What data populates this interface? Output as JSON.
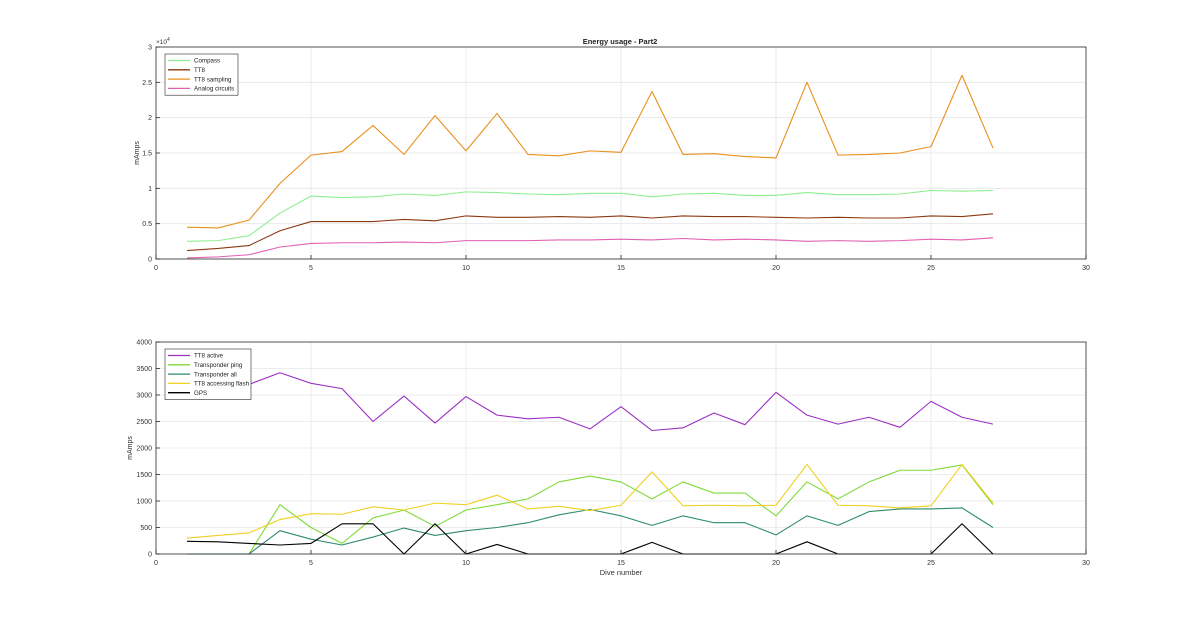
{
  "chart_data": [
    {
      "type": "line",
      "title": "Energy usage - Part2",
      "xlabel": "",
      "ylabel": "mAmps",
      "xlim": [
        0,
        30
      ],
      "ylim": [
        0,
        30000
      ],
      "xticks": [
        0,
        5,
        10,
        15,
        20,
        25,
        30
      ],
      "yticks": [
        0,
        5000,
        10000,
        15000,
        20000,
        25000,
        30000
      ],
      "ytick_labels": [
        "0",
        "0.5",
        "1",
        "1.5",
        "2",
        "2.5",
        "3"
      ],
      "exponent_label": "×10",
      "exponent_power": "4",
      "grid": true,
      "legend_location": "top-left",
      "x": [
        1,
        2,
        3,
        4,
        5,
        6,
        7,
        8,
        9,
        10,
        11,
        12,
        13,
        14,
        15,
        16,
        17,
        18,
        19,
        20,
        21,
        22,
        23,
        24,
        25,
        26,
        27
      ],
      "series": [
        {
          "name": "Compass",
          "color": "#90EE90",
          "values": [
            2500,
            2600,
            3300,
            6500,
            8900,
            8700,
            8800,
            9200,
            9000,
            9500,
            9400,
            9200,
            9100,
            9300,
            9300,
            8800,
            9200,
            9300,
            9000,
            9000,
            9400,
            9100,
            9100,
            9200,
            9700,
            9600,
            9700
          ]
        },
        {
          "name": "TT8",
          "color": "#8B3A0F",
          "values": [
            1200,
            1500,
            1900,
            4000,
            5300,
            5300,
            5300,
            5600,
            5400,
            6100,
            5900,
            5900,
            6000,
            5900,
            6100,
            5800,
            6100,
            6000,
            6000,
            5900,
            5800,
            5900,
            5800,
            5800,
            6100,
            6000,
            6400
          ]
        },
        {
          "name": "TT8 sampling",
          "color": "#E8901C",
          "values": [
            4500,
            4400,
            5500,
            10700,
            14700,
            15200,
            18900,
            14800,
            20300,
            15300,
            20600,
            14800,
            14600,
            15300,
            15100,
            23700,
            14800,
            14900,
            14500,
            14300,
            25000,
            14700,
            14800,
            15000,
            15900,
            26000,
            15700
          ]
        },
        {
          "name": "Analog circuits",
          "color": "#E060B0",
          "values": [
            150,
            300,
            600,
            1700,
            2200,
            2300,
            2300,
            2400,
            2300,
            2600,
            2600,
            2600,
            2700,
            2700,
            2800,
            2700,
            2900,
            2700,
            2800,
            2700,
            2500,
            2600,
            2500,
            2600,
            2800,
            2700,
            3000
          ]
        }
      ]
    },
    {
      "type": "line",
      "title": "",
      "xlabel": "Dive number",
      "ylabel": "mAmps",
      "xlim": [
        0,
        30
      ],
      "ylim": [
        0,
        4000
      ],
      "xticks": [
        0,
        5,
        10,
        15,
        20,
        25,
        30
      ],
      "yticks": [
        0,
        500,
        1000,
        1500,
        2000,
        2500,
        3000,
        3500,
        4000
      ],
      "grid": true,
      "legend_location": "top-left",
      "x": [
        1,
        2,
        3,
        4,
        5,
        6,
        7,
        8,
        9,
        10,
        11,
        12,
        13,
        14,
        15,
        16,
        17,
        18,
        19,
        20,
        21,
        22,
        23,
        24,
        25,
        26,
        27
      ],
      "series": [
        {
          "name": "TT8 active",
          "color": "#9A30C0",
          "values": [
            null,
            null,
            3200,
            3420,
            3220,
            3120,
            2500,
            2980,
            2470,
            2970,
            2620,
            2550,
            2580,
            2360,
            2780,
            2330,
            2380,
            2660,
            2440,
            3050,
            2620,
            2450,
            2580,
            2390,
            2880,
            2580,
            2450
          ]
        },
        {
          "name": "Transponder ping",
          "color": "#7EDB3A",
          "values": [
            0,
            0,
            0,
            930,
            500,
            200,
            680,
            830,
            520,
            830,
            930,
            1040,
            1360,
            1470,
            1360,
            1040,
            1360,
            1150,
            1150,
            720,
            1360,
            1040,
            1360,
            1580,
            1580,
            1680,
            930
          ]
        },
        {
          "name": "Transponder all",
          "color": "#2E8B6E",
          "values": [
            0,
            0,
            0,
            440,
            280,
            170,
            320,
            490,
            350,
            440,
            500,
            590,
            740,
            840,
            720,
            540,
            720,
            590,
            590,
            360,
            720,
            540,
            800,
            850,
            850,
            870,
            500
          ]
        },
        {
          "name": "TT8 accessing flash",
          "color": "#F0D020",
          "values": [
            300,
            350,
            400,
            650,
            760,
            750,
            890,
            830,
            960,
            930,
            1110,
            850,
            900,
            820,
            920,
            1550,
            910,
            920,
            910,
            920,
            1690,
            920,
            910,
            870,
            910,
            1690,
            960
          ]
        },
        {
          "name": "GPS",
          "color": "#000000",
          "values": [
            240,
            230,
            200,
            170,
            200,
            570,
            570,
            0,
            570,
            0,
            180,
            0,
            0,
            0,
            0,
            220,
            0,
            0,
            0,
            0,
            230,
            0,
            0,
            0,
            0,
            570,
            0
          ]
        }
      ]
    }
  ]
}
